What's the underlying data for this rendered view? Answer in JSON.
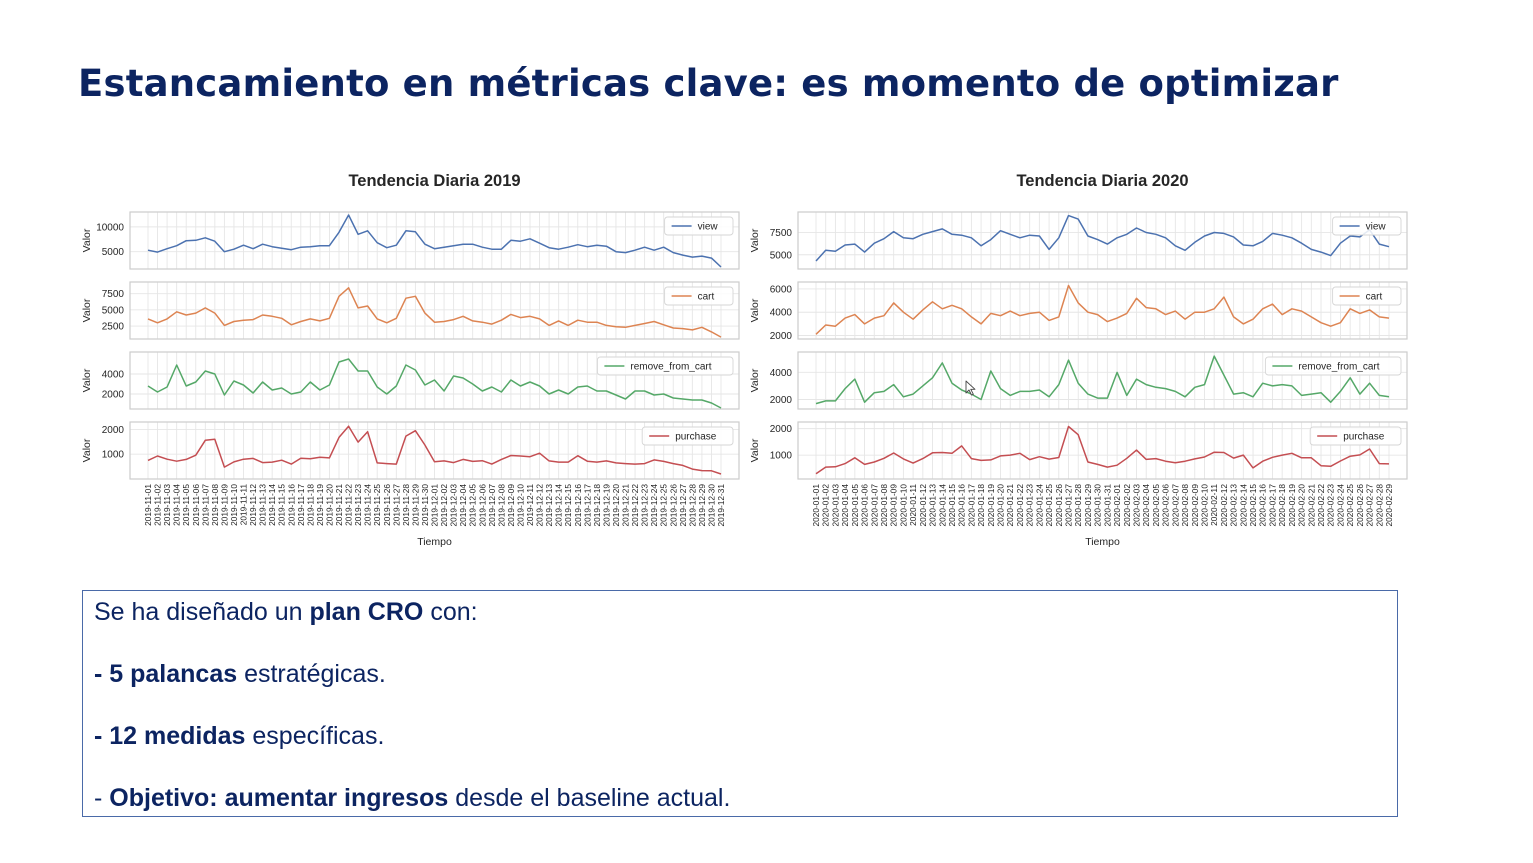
{
  "slide": {
    "title": "Estancamiento en métricas clave: es momento de optimizar"
  },
  "textbox": {
    "line1": {
      "pre": "Se ha diseñado un ",
      "bold": "plan CRO",
      "post": " con:"
    },
    "line2": {
      "bold": "- 5 palancas",
      "post": " estratégicas."
    },
    "line3": {
      "bold": "- 12 medidas",
      "post": " específicas."
    },
    "line4": {
      "pre": "- ",
      "bold": "Objetivo: aumentar ingresos",
      "post": " desde el baseline actual."
    }
  },
  "chart_data": [
    {
      "type": "line",
      "title": "Tendencia Diaria 2019",
      "xlabel": "Tiempo",
      "ylabel": "Valor",
      "x_start": "2019-11-01",
      "x_end": "2019-12-31",
      "grid": true,
      "legend_position": "top-right",
      "panels": [
        {
          "series": "view",
          "color": "#4c72b0",
          "ylim": [
            1500,
            13000
          ],
          "yticks": [
            5000,
            10000
          ],
          "values": [
            5300,
            4900,
            5600,
            6200,
            7200,
            7300,
            7800,
            7100,
            5000,
            5500,
            6300,
            5600,
            6500,
            6000,
            5700,
            5400,
            5900,
            6000,
            6200,
            6200,
            8900,
            12400,
            8500,
            9200,
            6800,
            5800,
            6300,
            9200,
            9000,
            6500,
            5600,
            5900,
            6200,
            6500,
            6500,
            5900,
            5500,
            5500,
            7300,
            7100,
            7600,
            6700,
            5800,
            5500,
            5900,
            6400,
            6000,
            6300,
            6100,
            5000,
            4800,
            5300,
            5900,
            5300,
            5900,
            4800,
            4300,
            3900,
            4100,
            3700,
            1900
          ]
        },
        {
          "series": "cart",
          "color": "#dd8452",
          "ylim": [
            500,
            9300
          ],
          "yticks": [
            2500,
            5000,
            7500
          ],
          "values": [
            3600,
            3000,
            3600,
            4700,
            4200,
            4500,
            5300,
            4500,
            2600,
            3200,
            3400,
            3500,
            4200,
            4000,
            3700,
            2700,
            3200,
            3600,
            3300,
            3700,
            7100,
            8400,
            5300,
            5600,
            3600,
            3000,
            3700,
            6800,
            7100,
            4500,
            3100,
            3200,
            3500,
            4000,
            3300,
            3100,
            2800,
            3400,
            4300,
            3800,
            4000,
            3600,
            2600,
            3300,
            2600,
            3400,
            3100,
            3100,
            2600,
            2400,
            2300,
            2600,
            2900,
            3200,
            2700,
            2200,
            2100,
            1900,
            2300,
            1600,
            800
          ]
        },
        {
          "series": "remove_from_cart",
          "color": "#55a868",
          "ylim": [
            500,
            6200
          ],
          "yticks": [
            2000,
            4000
          ],
          "values": [
            2800,
            2200,
            2700,
            4900,
            2800,
            3200,
            4300,
            4000,
            1900,
            3300,
            2900,
            2100,
            3200,
            2400,
            2600,
            2000,
            2200,
            3200,
            2400,
            2900,
            5200,
            5500,
            4300,
            4300,
            2700,
            2000,
            2800,
            4900,
            4400,
            2900,
            3400,
            2300,
            3800,
            3600,
            3000,
            2300,
            2700,
            2200,
            3400,
            2800,
            3200,
            2800,
            2000,
            2400,
            2000,
            2700,
            2800,
            2300,
            2300,
            1900,
            1500,
            2300,
            2300,
            1900,
            2000,
            1600,
            1500,
            1400,
            1400,
            1100,
            600
          ]
        },
        {
          "series": "purchase",
          "color": "#c44e52",
          "ylim": [
            0,
            2300
          ],
          "yticks": [
            1000,
            2000
          ],
          "values": [
            750,
            930,
            800,
            720,
            790,
            960,
            1560,
            1600,
            480,
            690,
            800,
            830,
            660,
            680,
            760,
            600,
            840,
            820,
            880,
            850,
            1680,
            2130,
            1490,
            1910,
            650,
            620,
            600,
            1730,
            1950,
            1370,
            700,
            730,
            660,
            790,
            710,
            740,
            600,
            790,
            950,
            930,
            900,
            1040,
            730,
            680,
            680,
            940,
            720,
            680,
            730,
            650,
            620,
            600,
            620,
            770,
            710,
            620,
            550,
            400,
            340,
            330,
            200
          ]
        }
      ]
    },
    {
      "type": "line",
      "title": "Tendencia Diaria 2020",
      "xlabel": "Tiempo",
      "ylabel": "Valor",
      "x_start": "2020-01-01",
      "x_end": "2020-02-29",
      "grid": true,
      "legend_position": "top-right",
      "panels": [
        {
          "series": "view",
          "color": "#4c72b0",
          "ylim": [
            3400,
            9800
          ],
          "yticks": [
            5000,
            7500
          ],
          "values": [
            4300,
            5500,
            5400,
            6100,
            6200,
            5300,
            6300,
            6800,
            7600,
            6900,
            6800,
            7300,
            7600,
            7900,
            7300,
            7200,
            6900,
            6000,
            6700,
            7700,
            7300,
            6900,
            7200,
            7100,
            5600,
            6900,
            9400,
            9000,
            7100,
            6700,
            6200,
            6900,
            7300,
            8000,
            7500,
            7300,
            6900,
            6000,
            5500,
            6400,
            7100,
            7500,
            7400,
            7000,
            6100,
            6000,
            6500,
            7400,
            7200,
            6900,
            6300,
            5600,
            5300,
            4900,
            6300,
            7100,
            7000,
            7800,
            6200,
            5900
          ]
        },
        {
          "series": "cart",
          "color": "#dd8452",
          "ylim": [
            1700,
            6600
          ],
          "yticks": [
            2000,
            4000,
            6000
          ],
          "values": [
            2100,
            2900,
            2800,
            3500,
            3800,
            3000,
            3500,
            3700,
            4800,
            4000,
            3400,
            4200,
            4900,
            4300,
            4600,
            4300,
            3600,
            3000,
            3900,
            3700,
            4100,
            3700,
            3900,
            4000,
            3300,
            3600,
            6300,
            4800,
            4000,
            3800,
            3200,
            3500,
            3900,
            5200,
            4400,
            4300,
            3800,
            4100,
            3400,
            4000,
            4000,
            4300,
            5300,
            3600,
            3000,
            3400,
            4300,
            4700,
            3800,
            4300,
            4100,
            3600,
            3100,
            2800,
            3100,
            4300,
            3900,
            4200,
            3600,
            3500
          ]
        },
        {
          "series": "remove_from_cart",
          "color": "#55a868",
          "ylim": [
            1300,
            5500
          ],
          "yticks": [
            2000,
            4000
          ],
          "values": [
            1700,
            1900,
            1900,
            2800,
            3500,
            1800,
            2500,
            2600,
            3100,
            2200,
            2400,
            3000,
            3600,
            4700,
            3200,
            2700,
            2400,
            2000,
            4100,
            2800,
            2300,
            2600,
            2600,
            2700,
            2200,
            3100,
            4900,
            3200,
            2400,
            2100,
            2100,
            4000,
            2300,
            3500,
            3100,
            2900,
            2800,
            2600,
            2200,
            2900,
            3100,
            5200,
            3800,
            2400,
            2500,
            2200,
            3200,
            3000,
            3100,
            3000,
            2300,
            2400,
            2500,
            1800,
            2600,
            3600,
            2400,
            3200,
            2300,
            2200
          ]
        },
        {
          "series": "purchase",
          "color": "#c44e52",
          "ylim": [
            100,
            2250
          ],
          "yticks": [
            1000,
            2000
          ],
          "values": [
            300,
            550,
            560,
            680,
            900,
            650,
            740,
            880,
            1080,
            860,
            700,
            870,
            1090,
            1100,
            1070,
            1350,
            870,
            800,
            820,
            970,
            1000,
            1070,
            830,
            940,
            850,
            910,
            2080,
            1770,
            740,
            650,
            550,
            620,
            880,
            1190,
            840,
            870,
            770,
            710,
            770,
            860,
            930,
            1110,
            1100,
            890,
            1000,
            520,
            770,
            920,
            1000,
            1070,
            900,
            900,
            600,
            580,
            780,
            960,
            1010,
            1230,
            680,
            670
          ]
        }
      ]
    }
  ]
}
